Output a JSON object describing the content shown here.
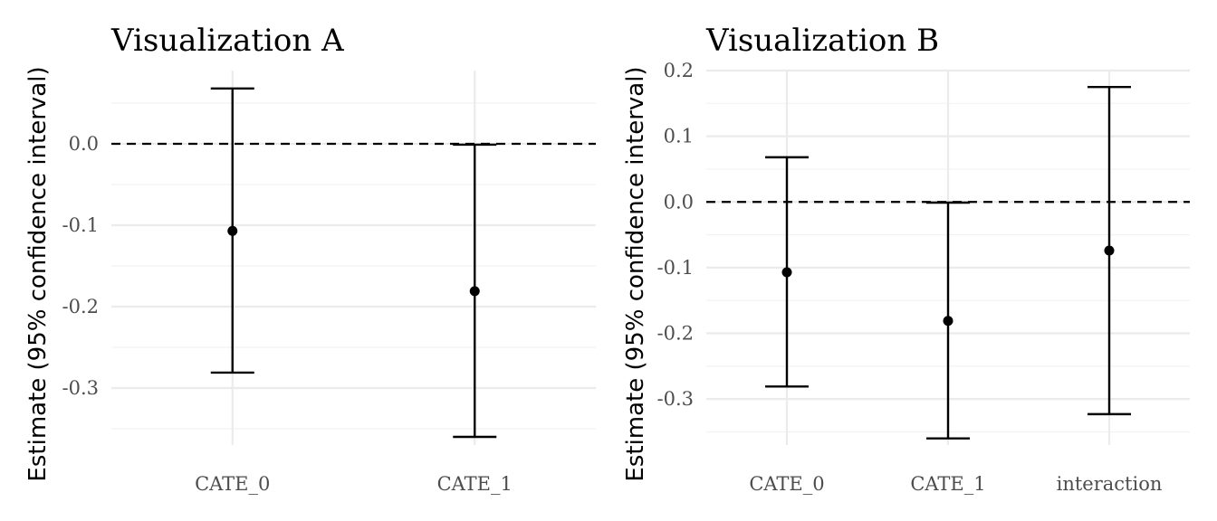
{
  "chart_data": [
    {
      "type": "errorbar",
      "title": "Visualization A",
      "xlabel": "",
      "ylabel": "Estimate (95% confidence interval)",
      "categories": [
        "CATE_0",
        "CATE_1"
      ],
      "estimates": [
        -0.107,
        -0.181
      ],
      "lower": [
        -0.281,
        -0.36
      ],
      "upper": [
        0.068,
        -0.001
      ],
      "ylim": [
        -0.37,
        0.09
      ],
      "yticks": [
        0.0,
        -0.1,
        -0.2,
        -0.3
      ],
      "ytick_labels": [
        "0.0",
        "-0.1",
        "-0.2",
        "-0.3"
      ],
      "reference_line": 0.0,
      "grid": true
    },
    {
      "type": "errorbar",
      "title": "Visualization B",
      "xlabel": "",
      "ylabel": "Estimate (95% confidence interval)",
      "categories": [
        "CATE_0",
        "CATE_1",
        "interaction"
      ],
      "estimates": [
        -0.107,
        -0.181,
        -0.074
      ],
      "lower": [
        -0.281,
        -0.36,
        -0.323
      ],
      "upper": [
        0.068,
        -0.001,
        0.175
      ],
      "ylim": [
        -0.37,
        0.2
      ],
      "yticks": [
        0.2,
        0.1,
        0.0,
        -0.1,
        -0.2,
        -0.3
      ],
      "ytick_labels": [
        "0.2",
        "0.1",
        "0.0",
        "-0.1",
        "-0.2",
        "-0.3"
      ],
      "reference_line": 0.0,
      "grid": true
    }
  ]
}
